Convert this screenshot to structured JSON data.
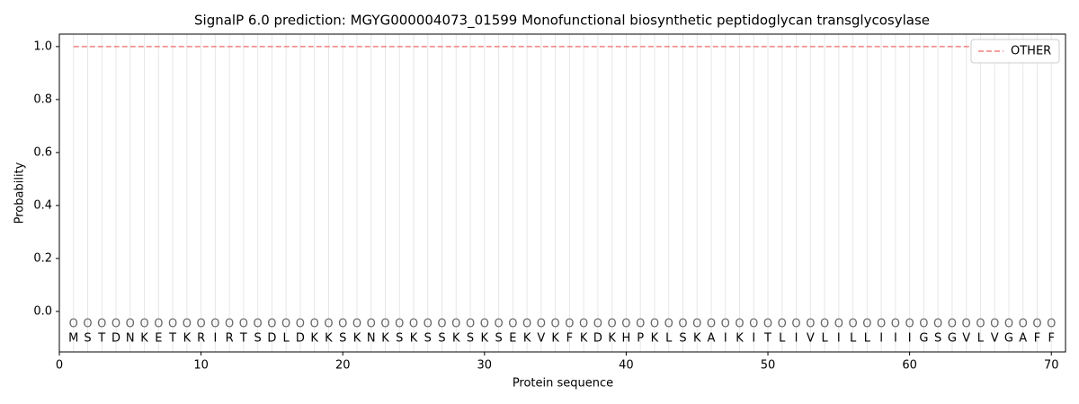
{
  "chart_data": {
    "type": "line",
    "title": "SignalP 6.0 prediction: MGYG000004073_01599 Monofunctional biosynthetic peptidoglycan transglycosylase",
    "x_label": "Protein sequence",
    "y_label": "Probability",
    "x": [
      1,
      2,
      3,
      4,
      5,
      6,
      7,
      8,
      9,
      10,
      11,
      12,
      13,
      14,
      15,
      16,
      17,
      18,
      19,
      20,
      21,
      22,
      23,
      24,
      25,
      26,
      27,
      28,
      29,
      30,
      31,
      32,
      33,
      34,
      35,
      36,
      37,
      38,
      39,
      40,
      41,
      42,
      43,
      44,
      45,
      46,
      47,
      48,
      49,
      50,
      51,
      52,
      53,
      54,
      55,
      56,
      57,
      58,
      59,
      60,
      61,
      62,
      63,
      64,
      65,
      66,
      67,
      68,
      69,
      70
    ],
    "residues": [
      "M",
      "S",
      "T",
      "D",
      "N",
      "K",
      "E",
      "T",
      "K",
      "R",
      "I",
      "R",
      "T",
      "S",
      "D",
      "L",
      "D",
      "K",
      "K",
      "S",
      "K",
      "N",
      "K",
      "S",
      "K",
      "S",
      "S",
      "K",
      "S",
      "K",
      "S",
      "E",
      "K",
      "V",
      "K",
      "F",
      "K",
      "D",
      "K",
      "H",
      "P",
      "K",
      "L",
      "S",
      "K",
      "A",
      "I",
      "K",
      "I",
      "T",
      "L",
      "I",
      "V",
      "L",
      "I",
      "L",
      "L",
      "I",
      "I",
      "I",
      "G",
      "S",
      "G",
      "V",
      "L",
      "V",
      "G",
      "A",
      "F",
      "F"
    ],
    "predicted_labels": [
      "O",
      "O",
      "O",
      "O",
      "O",
      "O",
      "O",
      "O",
      "O",
      "O",
      "O",
      "O",
      "O",
      "O",
      "O",
      "O",
      "O",
      "O",
      "O",
      "O",
      "O",
      "O",
      "O",
      "O",
      "O",
      "O",
      "O",
      "O",
      "O",
      "O",
      "O",
      "O",
      "O",
      "O",
      "O",
      "O",
      "O",
      "O",
      "O",
      "O",
      "O",
      "O",
      "O",
      "O",
      "O",
      "O",
      "O",
      "O",
      "O",
      "O",
      "O",
      "O",
      "O",
      "O",
      "O",
      "O",
      "O",
      "O",
      "O",
      "O",
      "O",
      "O",
      "O",
      "O",
      "O",
      "O",
      "O",
      "O",
      "O",
      "O"
    ],
    "series": [
      {
        "name": "OTHER",
        "color": "#f08080",
        "dashed": true,
        "values": [
          1,
          1,
          1,
          1,
          1,
          1,
          1,
          1,
          1,
          1,
          1,
          1,
          1,
          1,
          1,
          1,
          1,
          1,
          1,
          1,
          1,
          1,
          1,
          1,
          1,
          1,
          1,
          1,
          1,
          1,
          1,
          1,
          1,
          1,
          1,
          1,
          1,
          1,
          1,
          1,
          1,
          1,
          1,
          1,
          1,
          1,
          1,
          1,
          1,
          1,
          1,
          1,
          1,
          1,
          1,
          1,
          1,
          1,
          1,
          1,
          1,
          1,
          1,
          1,
          1,
          1,
          1,
          1,
          1,
          1
        ]
      }
    ],
    "xlim": [
      0,
      71
    ],
    "ylim": [
      -0.153,
      1.047
    ],
    "xticks": [
      0,
      10,
      20,
      30,
      40,
      50,
      60,
      70
    ],
    "yticks": [
      {
        "value": 0,
        "label": "0.0"
      },
      0.2,
      0.4,
      0.6,
      0.8,
      {
        "value": 1,
        "label": "1.0"
      }
    ],
    "legend": "upper right"
  }
}
